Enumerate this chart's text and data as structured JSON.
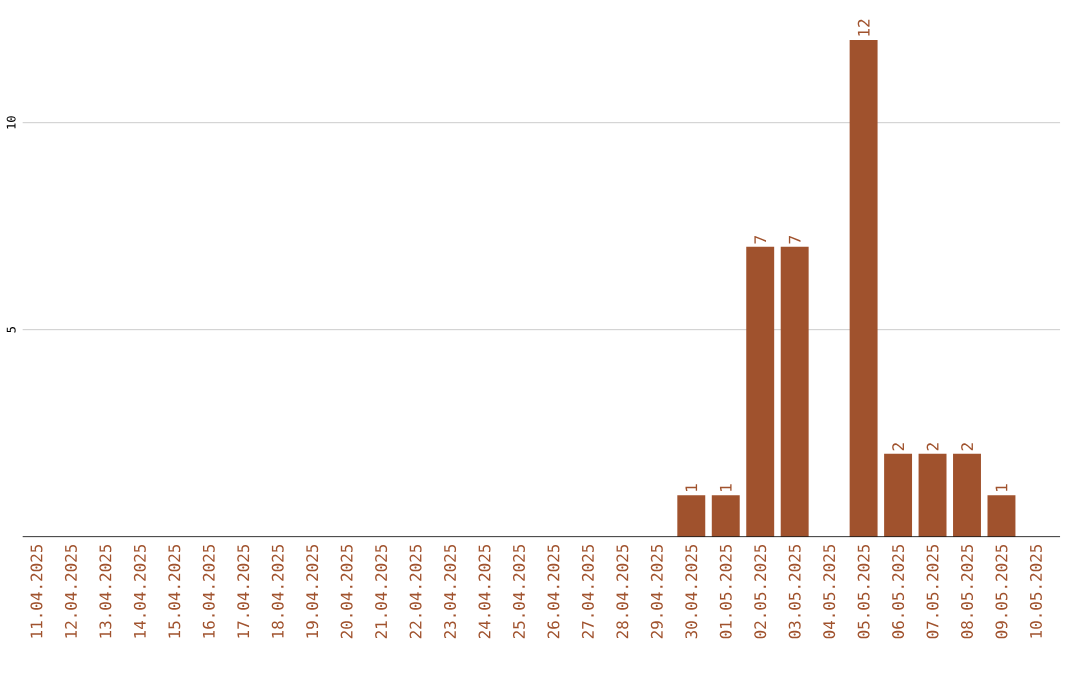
{
  "chart_data": {
    "type": "bar",
    "categories": [
      "11.04.2025",
      "12.04.2025",
      "13.04.2025",
      "14.04.2025",
      "15.04.2025",
      "16.04.2025",
      "17.04.2025",
      "18.04.2025",
      "19.04.2025",
      "20.04.2025",
      "21.04.2025",
      "22.04.2025",
      "23.04.2025",
      "24.04.2025",
      "25.04.2025",
      "26.04.2025",
      "27.04.2025",
      "28.04.2025",
      "29.04.2025",
      "30.04.2025",
      "01.05.2025",
      "02.05.2025",
      "03.05.2025",
      "04.05.2025",
      "05.05.2025",
      "06.05.2025",
      "07.05.2025",
      "08.05.2025",
      "09.05.2025",
      "10.05.2025"
    ],
    "values": [
      0,
      0,
      0,
      0,
      0,
      0,
      0,
      0,
      0,
      0,
      0,
      0,
      0,
      0,
      0,
      0,
      0,
      0,
      0,
      1,
      1,
      7,
      7,
      0,
      12,
      2,
      2,
      2,
      1,
      0
    ],
    "value_labels": [
      null,
      null,
      null,
      null,
      null,
      null,
      null,
      null,
      null,
      null,
      null,
      null,
      null,
      null,
      null,
      null,
      null,
      null,
      null,
      "1",
      "1",
      "7",
      "7",
      null,
      "12",
      "2",
      "2",
      "2",
      "1",
      null
    ],
    "color": "#a0522d",
    "ylim": [
      0,
      12
    ],
    "yticks": [
      5,
      10
    ],
    "grid": "y"
  }
}
